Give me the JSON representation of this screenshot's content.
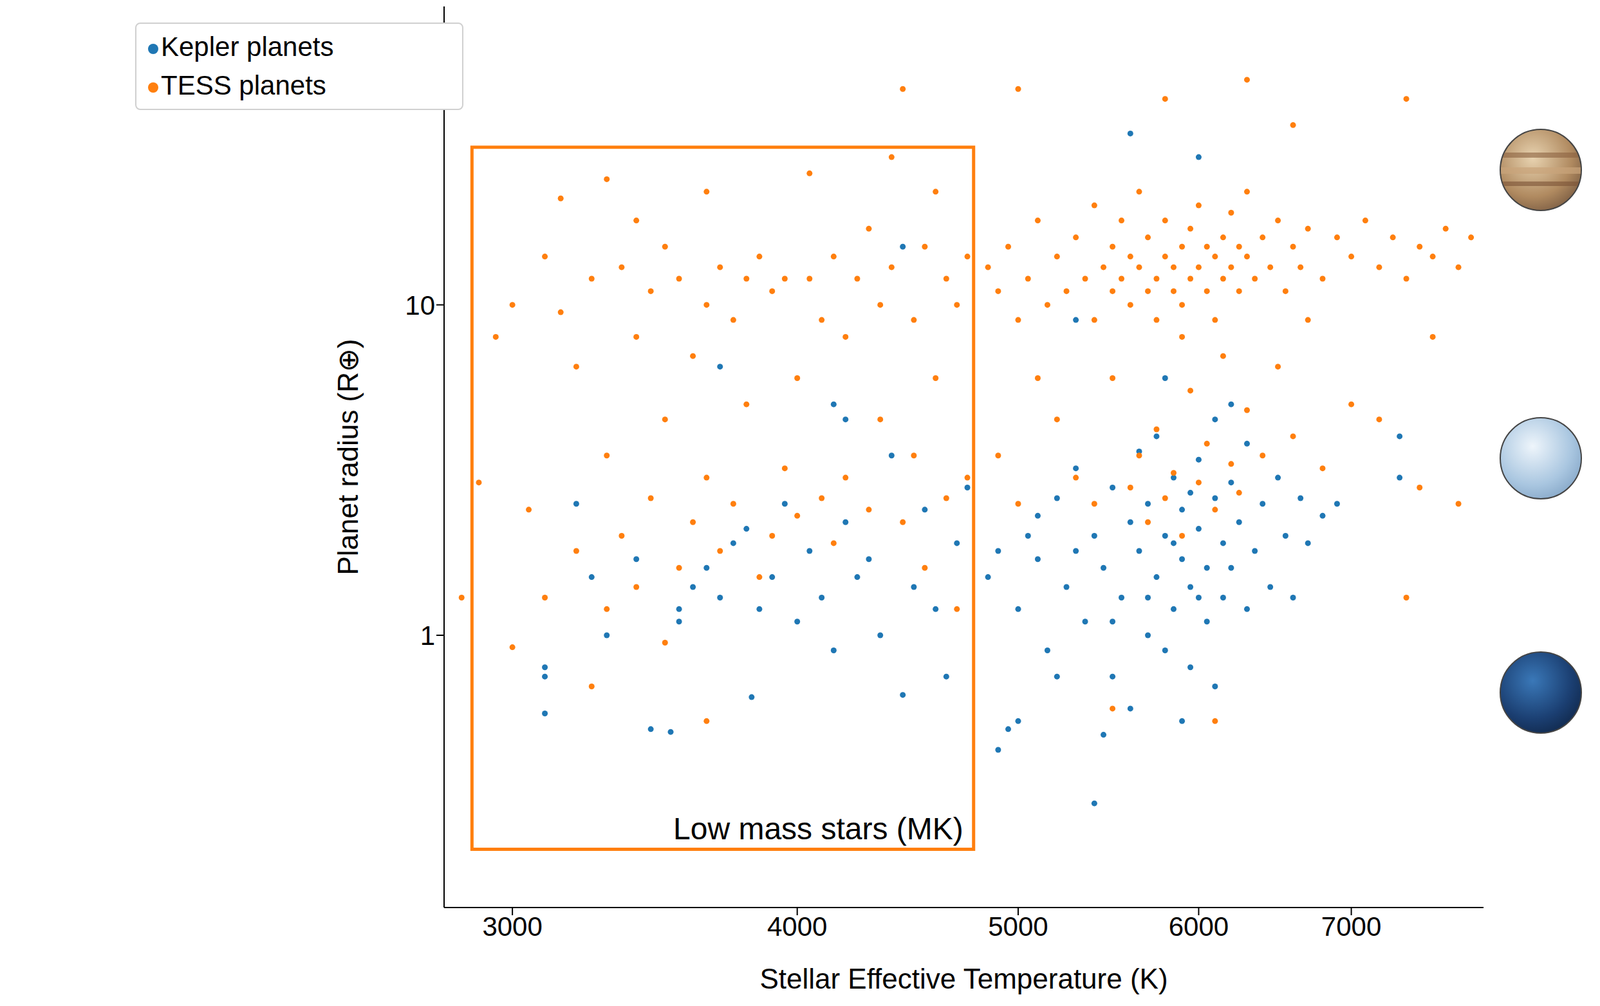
{
  "chart_data": {
    "type": "scatter",
    "x_label": "Stellar Effective Temperature (K)",
    "y_label": "Planet radius (R⊕)",
    "log": true,
    "legend": "upper left",
    "xlim": [
      2800,
      8000
    ],
    "ylim": [
      0.15,
      80
    ],
    "xticks": [
      3000,
      4000,
      5000,
      6000,
      7000
    ],
    "yticks": [
      1,
      10
    ],
    "annotations": [
      {
        "text": "Low mass stars (MK)",
        "xlim": [
          2880,
          4780
        ],
        "ylim": [
          0.225,
          30
        ],
        "color": "#ff7f0e"
      }
    ],
    "series": [
      {
        "name": "Kepler planets",
        "color": "#1f77b4",
        "marker": "circle",
        "x": [
          3100,
          3100,
          3100,
          3300,
          3250,
          3450,
          3520,
          3550,
          3600,
          3650,
          3700,
          3750,
          3800,
          3850,
          3820,
          3900,
          3950,
          4000,
          4050,
          4100,
          4150,
          4200,
          4250,
          4300,
          4350,
          4400,
          4450,
          4500,
          4550,
          4600,
          4650,
          4700,
          4750,
          4150,
          3700,
          4200,
          4450,
          3200,
          3400,
          3550,
          4850,
          4900,
          4950,
          5000,
          5050,
          5100,
          5150,
          5200,
          5250,
          5300,
          5350,
          5400,
          5400,
          5450,
          5500,
          5500,
          5550,
          5600,
          5600,
          5650,
          5650,
          5700,
          5700,
          5750,
          5750,
          5800,
          5800,
          5850,
          5850,
          5900,
          5900,
          5950,
          5950,
          6000,
          6000,
          6050,
          6050,
          6100,
          6100,
          6150,
          6150,
          6200,
          6200,
          6250,
          6300,
          6300,
          6350,
          6400,
          6450,
          6500,
          6550,
          6600,
          6650,
          6700,
          6800,
          6900,
          5600,
          6000,
          5300,
          5800,
          6200,
          7350,
          7350,
          5000,
          5200,
          5450,
          5900,
          6100,
          5700,
          5850,
          6000,
          5950,
          5500,
          5300,
          4900,
          5100
        ],
        "values": [
          0.58,
          0.75,
          0.8,
          1.0,
          1.5,
          0.52,
          0.51,
          1.2,
          1.4,
          1.6,
          1.3,
          1.9,
          2.1,
          1.2,
          0.65,
          1.5,
          2.5,
          1.1,
          1.8,
          1.3,
          0.9,
          2.2,
          1.5,
          1.7,
          1.0,
          3.5,
          0.66,
          1.4,
          2.4,
          1.2,
          0.75,
          1.9,
          2.8,
          5.0,
          6.5,
          4.5,
          15,
          2.5,
          1.7,
          1.1,
          1.5,
          0.45,
          0.52,
          1.2,
          2.0,
          1.7,
          0.9,
          2.6,
          1.4,
          3.2,
          1.1,
          0.31,
          2.0,
          1.6,
          0.75,
          2.8,
          1.3,
          2.2,
          0.6,
          1.8,
          3.6,
          1.0,
          2.5,
          1.5,
          4.0,
          0.9,
          2.0,
          1.2,
          3.0,
          1.7,
          2.4,
          0.8,
          1.4,
          2.1,
          3.4,
          1.6,
          1.1,
          2.6,
          0.7,
          1.9,
          1.3,
          2.9,
          1.6,
          2.2,
          1.2,
          3.8,
          1.8,
          2.5,
          1.4,
          3.0,
          2.0,
          1.3,
          2.6,
          1.9,
          2.3,
          2.5,
          33,
          28,
          9,
          6,
          5,
          3.0,
          4.0,
          0.55,
          0.75,
          0.5,
          0.55,
          4.5,
          1.3,
          1.9,
          1.3,
          2.7,
          1.1,
          1.8,
          1.8,
          2.3
        ]
      },
      {
        "name": "TESS planets",
        "color": "#ff7f0e",
        "marker": "circle",
        "x": [
          2850,
          2900,
          2950,
          3000,
          3000,
          3050,
          3100,
          3100,
          3150,
          3150,
          3200,
          3200,
          3250,
          3300,
          3300,
          3300,
          3350,
          3350,
          3400,
          3400,
          3400,
          3450,
          3450,
          3500,
          3500,
          3500,
          3550,
          3550,
          3600,
          3600,
          3650,
          3650,
          3650,
          3700,
          3700,
          3750,
          3750,
          3800,
          3800,
          3850,
          3850,
          3900,
          3900,
          3950,
          3950,
          4000,
          4000,
          4050,
          4050,
          4100,
          4100,
          4150,
          4150,
          4200,
          4200,
          4250,
          4300,
          4300,
          4350,
          4350,
          4400,
          4400,
          4450,
          4500,
          4500,
          4550,
          4550,
          4600,
          4600,
          4650,
          4650,
          4700,
          4700,
          4750,
          4750,
          3650,
          3250,
          4850,
          4900,
          4950,
          5000,
          5000,
          5050,
          5100,
          5150,
          5200,
          5250,
          5300,
          5350,
          5400,
          5400,
          5450,
          5500,
          5500,
          5550,
          5550,
          5600,
          5600,
          5650,
          5650,
          5700,
          5700,
          5750,
          5750,
          5800,
          5800,
          5850,
          5850,
          5900,
          5900,
          5950,
          5950,
          6000,
          6000,
          6050,
          6050,
          6100,
          6100,
          6150,
          6150,
          6200,
          6200,
          6250,
          6250,
          6300,
          6300,
          6350,
          6400,
          6450,
          6500,
          6550,
          6600,
          6650,
          6700,
          6800,
          6900,
          7000,
          7100,
          7200,
          7300,
          7400,
          7500,
          7600,
          7700,
          7800,
          7900,
          6300,
          5800,
          4450,
          7400,
          6600,
          5200,
          5300,
          5400,
          5500,
          5600,
          5650,
          5700,
          5750,
          5800,
          5850,
          5900,
          5950,
          6000,
          6050,
          6100,
          6150,
          6200,
          6250,
          6300,
          6400,
          6500,
          6600,
          6800,
          7000,
          7200,
          7500,
          7400,
          5500,
          6100,
          5900,
          5000,
          4900,
          5100,
          7800,
          7600,
          6700
        ],
        "values": [
          1.3,
          2.9,
          8,
          10,
          0.92,
          2.4,
          14,
          1.3,
          21,
          9.5,
          6.5,
          1.8,
          12,
          24,
          3.5,
          1.2,
          13,
          2.0,
          18,
          8,
          1.4,
          11,
          2.6,
          15,
          4.5,
          0.95,
          12,
          1.6,
          7,
          2.2,
          22,
          10,
          3.0,
          13,
          1.8,
          9,
          2.5,
          12,
          5,
          14,
          1.5,
          11,
          2.0,
          12,
          3.2,
          2.3,
          6,
          25,
          12,
          9,
          2.6,
          14,
          1.9,
          3.0,
          8,
          12,
          17,
          2.4,
          4.5,
          10,
          28,
          13,
          2.2,
          9,
          3.5,
          15,
          1.6,
          22,
          6,
          12,
          2.6,
          10,
          1.2,
          14,
          3.0,
          0.55,
          0.7,
          13,
          11,
          15,
          9,
          45,
          12,
          18,
          10,
          14,
          11,
          16,
          12,
          9,
          20,
          13,
          11,
          15,
          12,
          18,
          10,
          14,
          13,
          22,
          11,
          16,
          12,
          9,
          14,
          18,
          11,
          13,
          15,
          10,
          12,
          17,
          13,
          20,
          11,
          15,
          14,
          9,
          16,
          12,
          13,
          19,
          11,
          15,
          14,
          22,
          12,
          16,
          13,
          18,
          11,
          15,
          13,
          17,
          12,
          16,
          14,
          18,
          13,
          16,
          12,
          15,
          14,
          17,
          13,
          16,
          48,
          42,
          45,
          42,
          35,
          4.5,
          3.0,
          2.5,
          6,
          2.8,
          3.5,
          2.2,
          4.2,
          2.6,
          3.1,
          2.0,
          5.5,
          2.9,
          3.8,
          2.4,
          7,
          3.3,
          2.7,
          4.8,
          3.5,
          6.5,
          4.0,
          3.2,
          5,
          4.5,
          2.8,
          1.3,
          0.6,
          0.55,
          8,
          2.5,
          3.5,
          6,
          2.5,
          8,
          9
        ]
      }
    ]
  }
}
